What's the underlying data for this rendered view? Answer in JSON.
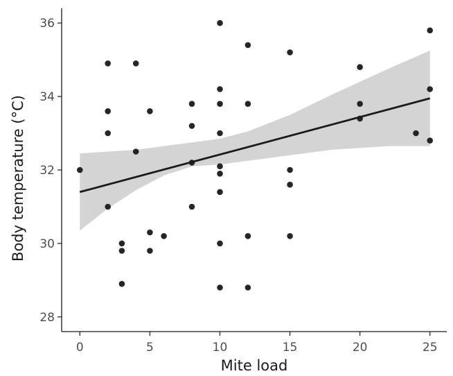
{
  "chart_data": {
    "type": "scatter",
    "xlabel": "Mite load",
    "ylabel": "Body temperature (°C)",
    "xlim": [
      -1.3,
      26.2
    ],
    "ylim": [
      27.6,
      36.4
    ],
    "xticks": [
      0,
      5,
      10,
      15,
      20,
      25
    ],
    "yticks": [
      28,
      30,
      32,
      34,
      36
    ],
    "grid": false,
    "colors": {
      "points": "#1a1a1a",
      "line": "#1a1a1a",
      "band": "#cccccc",
      "axis": "#1a1a1a"
    },
    "points": [
      {
        "x": 0,
        "y": 32.0
      },
      {
        "x": 2,
        "y": 34.9
      },
      {
        "x": 2,
        "y": 33.6
      },
      {
        "x": 2,
        "y": 33.0
      },
      {
        "x": 2,
        "y": 31.0
      },
      {
        "x": 3,
        "y": 30.0
      },
      {
        "x": 3,
        "y": 29.8
      },
      {
        "x": 3,
        "y": 28.9
      },
      {
        "x": 4,
        "y": 34.9
      },
      {
        "x": 4,
        "y": 32.5
      },
      {
        "x": 5,
        "y": 33.6
      },
      {
        "x": 5,
        "y": 30.3
      },
      {
        "x": 5,
        "y": 29.8
      },
      {
        "x": 6,
        "y": 30.2
      },
      {
        "x": 8,
        "y": 33.8
      },
      {
        "x": 8,
        "y": 33.2
      },
      {
        "x": 8,
        "y": 32.2
      },
      {
        "x": 8,
        "y": 31.0
      },
      {
        "x": 10,
        "y": 36.0
      },
      {
        "x": 10,
        "y": 34.2
      },
      {
        "x": 10,
        "y": 33.8
      },
      {
        "x": 10,
        "y": 33.0
      },
      {
        "x": 10,
        "y": 32.1
      },
      {
        "x": 10,
        "y": 31.9
      },
      {
        "x": 10,
        "y": 31.4
      },
      {
        "x": 10,
        "y": 30.0
      },
      {
        "x": 10,
        "y": 28.8
      },
      {
        "x": 12,
        "y": 35.4
      },
      {
        "x": 12,
        "y": 33.8
      },
      {
        "x": 12,
        "y": 30.2
      },
      {
        "x": 12,
        "y": 28.8
      },
      {
        "x": 15,
        "y": 35.2
      },
      {
        "x": 15,
        "y": 32.0
      },
      {
        "x": 15,
        "y": 31.6
      },
      {
        "x": 15,
        "y": 30.2
      },
      {
        "x": 20,
        "y": 34.8
      },
      {
        "x": 20,
        "y": 33.8
      },
      {
        "x": 20,
        "y": 33.4
      },
      {
        "x": 24,
        "y": 33.0
      },
      {
        "x": 25,
        "y": 35.8
      },
      {
        "x": 25,
        "y": 34.2
      },
      {
        "x": 25,
        "y": 32.8
      }
    ],
    "fit_line": {
      "x": [
        0,
        25
      ],
      "y": [
        31.4,
        33.95
      ]
    },
    "confidence_band": {
      "x": [
        0,
        2,
        4,
        6,
        8,
        10,
        12,
        15,
        18,
        20,
        22,
        25
      ],
      "lower": [
        30.35,
        30.95,
        31.45,
        31.85,
        32.1,
        32.15,
        32.25,
        32.4,
        32.55,
        32.6,
        32.65,
        32.65
      ],
      "upper": [
        32.45,
        32.5,
        32.55,
        32.65,
        32.75,
        32.85,
        33.05,
        33.5,
        34.05,
        34.4,
        34.75,
        35.25
      ]
    }
  }
}
